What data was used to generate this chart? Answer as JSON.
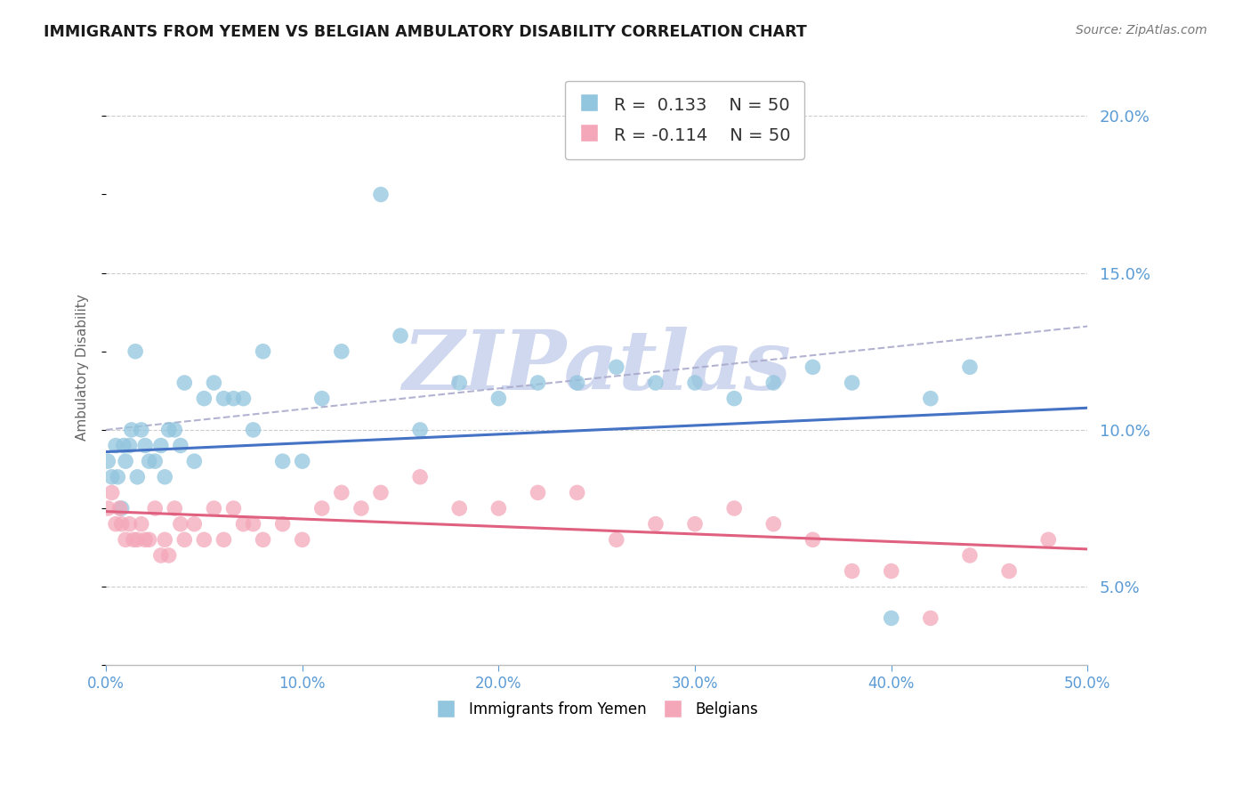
{
  "title": "IMMIGRANTS FROM YEMEN VS BELGIAN AMBULATORY DISABILITY CORRELATION CHART",
  "source": "Source: ZipAtlas.com",
  "ylabel": "Ambulatory Disability",
  "xlim": [
    0.0,
    0.5
  ],
  "ylim": [
    0.025,
    0.215
  ],
  "x_ticks": [
    0.0,
    0.1,
    0.2,
    0.3,
    0.4,
    0.5
  ],
  "y_ticks": [
    0.05,
    0.1,
    0.15,
    0.2
  ],
  "legend1_label": "Immigrants from Yemen",
  "legend2_label": "Belgians",
  "R1": 0.133,
  "N1": 50,
  "R2": -0.114,
  "N2": 50,
  "color_blue": "#92C5DE",
  "color_pink": "#F4A7B9",
  "color_blue_line": "#4472C4",
  "color_pink_line": "#E06080",
  "color_dash": "#AAAACC",
  "color_axis_text": "#5B9BD5",
  "color_grid": "#CCCCCC",
  "watermark_text": "ZIPatlas",
  "watermark_color": "#D0D8F0",
  "scatter_blue_x": [
    0.001,
    0.003,
    0.005,
    0.006,
    0.008,
    0.009,
    0.01,
    0.012,
    0.013,
    0.015,
    0.016,
    0.018,
    0.02,
    0.022,
    0.025,
    0.028,
    0.03,
    0.032,
    0.035,
    0.038,
    0.04,
    0.045,
    0.05,
    0.055,
    0.06,
    0.065,
    0.07,
    0.075,
    0.08,
    0.09,
    0.1,
    0.11,
    0.12,
    0.14,
    0.15,
    0.16,
    0.18,
    0.2,
    0.22,
    0.24,
    0.26,
    0.28,
    0.3,
    0.32,
    0.34,
    0.36,
    0.38,
    0.4,
    0.42,
    0.44
  ],
  "scatter_blue_y": [
    0.09,
    0.085,
    0.095,
    0.085,
    0.075,
    0.095,
    0.09,
    0.095,
    0.1,
    0.125,
    0.085,
    0.1,
    0.095,
    0.09,
    0.09,
    0.095,
    0.085,
    0.1,
    0.1,
    0.095,
    0.115,
    0.09,
    0.11,
    0.115,
    0.11,
    0.11,
    0.11,
    0.1,
    0.125,
    0.09,
    0.09,
    0.11,
    0.125,
    0.175,
    0.13,
    0.1,
    0.115,
    0.11,
    0.115,
    0.115,
    0.12,
    0.115,
    0.115,
    0.11,
    0.115,
    0.12,
    0.115,
    0.04,
    0.11,
    0.12
  ],
  "scatter_pink_x": [
    0.001,
    0.003,
    0.005,
    0.007,
    0.008,
    0.01,
    0.012,
    0.014,
    0.016,
    0.018,
    0.02,
    0.022,
    0.025,
    0.028,
    0.03,
    0.032,
    0.035,
    0.038,
    0.04,
    0.045,
    0.05,
    0.055,
    0.06,
    0.065,
    0.07,
    0.075,
    0.08,
    0.09,
    0.1,
    0.11,
    0.12,
    0.13,
    0.14,
    0.16,
    0.18,
    0.2,
    0.22,
    0.24,
    0.26,
    0.28,
    0.3,
    0.32,
    0.34,
    0.36,
    0.38,
    0.4,
    0.42,
    0.44,
    0.46,
    0.48
  ],
  "scatter_pink_y": [
    0.075,
    0.08,
    0.07,
    0.075,
    0.07,
    0.065,
    0.07,
    0.065,
    0.065,
    0.07,
    0.065,
    0.065,
    0.075,
    0.06,
    0.065,
    0.06,
    0.075,
    0.07,
    0.065,
    0.07,
    0.065,
    0.075,
    0.065,
    0.075,
    0.07,
    0.07,
    0.065,
    0.07,
    0.065,
    0.075,
    0.08,
    0.075,
    0.08,
    0.085,
    0.075,
    0.075,
    0.08,
    0.08,
    0.065,
    0.07,
    0.07,
    0.075,
    0.07,
    0.065,
    0.055,
    0.055,
    0.04,
    0.06,
    0.055,
    0.065
  ],
  "blue_line_x0": 0.0,
  "blue_line_y0": 0.093,
  "blue_line_x1": 0.5,
  "blue_line_y1": 0.107,
  "pink_line_x0": 0.0,
  "pink_line_y0": 0.074,
  "pink_line_x1": 0.5,
  "pink_line_y1": 0.062,
  "dash_line_x0": 0.0,
  "dash_line_y0": 0.1,
  "dash_line_x1": 0.5,
  "dash_line_y1": 0.133
}
